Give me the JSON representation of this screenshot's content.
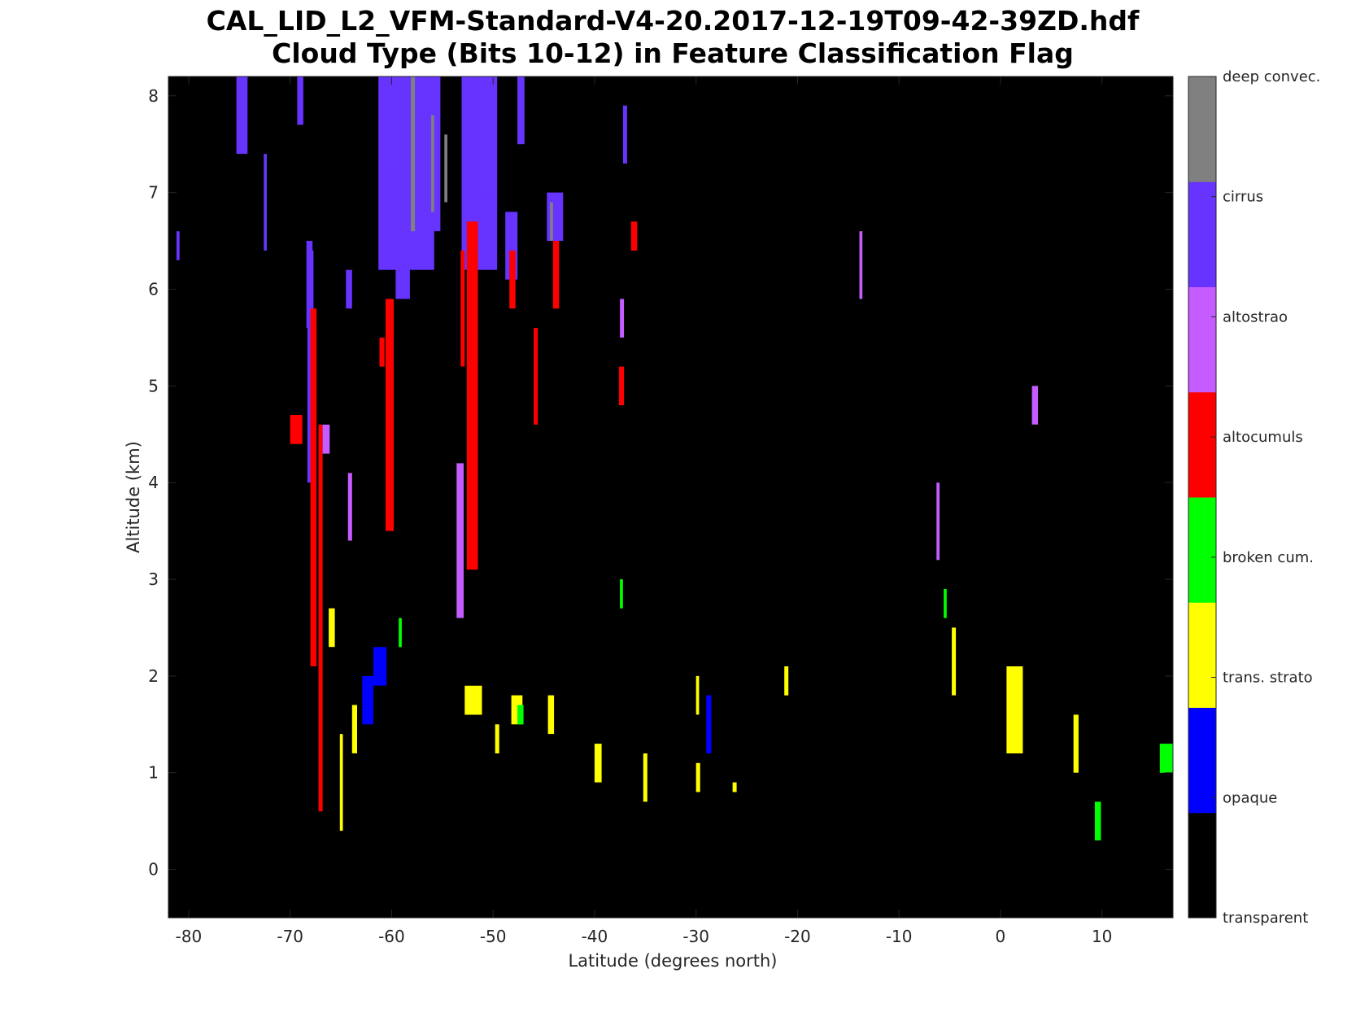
{
  "chart_data": {
    "type": "heatmap",
    "title": "CAL_LID_L2_VFM-Standard-V4-20.2017-12-19T09-42-39ZD.hdf",
    "subtitle": "Cloud Type  (Bits 10-12) in Feature Classification Flag",
    "xlabel": "Latitude (degrees north)",
    "ylabel": "Altitude (km)",
    "xlim": [
      -82,
      17
    ],
    "ylim": [
      -0.5,
      8.2
    ],
    "xticks": [
      -80,
      -70,
      -60,
      -50,
      -40,
      -30,
      -20,
      -10,
      0,
      10
    ],
    "yticks": [
      0,
      1,
      2,
      3,
      4,
      5,
      6,
      7,
      8
    ],
    "background_class": "transparent",
    "colorbar": {
      "position": "right",
      "classes": [
        {
          "label": "transparent",
          "color": "#000000"
        },
        {
          "label": "opaque",
          "color": "#0000ff"
        },
        {
          "label": "trans. strato",
          "color": "#ffff00"
        },
        {
          "label": "broken cum.",
          "color": "#00ff00"
        },
        {
          "label": "altocumuls",
          "color": "#ff0000"
        },
        {
          "label": "altostrao",
          "color": "#c45cff"
        },
        {
          "label": "cirrus",
          "color": "#6633ff"
        },
        {
          "label": "deep convec.",
          "color": "#808080"
        }
      ]
    },
    "features": [
      {
        "class": "cirrus",
        "x": [
          -75.3,
          -74.2
        ],
        "y": [
          7.4,
          8.2
        ]
      },
      {
        "class": "cirrus",
        "x": [
          -72.6,
          -72.3
        ],
        "y": [
          6.4,
          7.4
        ]
      },
      {
        "class": "cirrus",
        "x": [
          -69.3,
          -68.7
        ],
        "y": [
          7.7,
          8.2
        ]
      },
      {
        "class": "cirrus",
        "x": [
          -68.4,
          -67.8
        ],
        "y": [
          5.6,
          6.5
        ]
      },
      {
        "class": "cirrus",
        "x": [
          -68.3,
          -67.7
        ],
        "y": [
          4.0,
          6.4
        ]
      },
      {
        "class": "cirrus",
        "x": [
          -64.5,
          -63.9
        ],
        "y": [
          5.8,
          6.2
        ]
      },
      {
        "class": "cirrus",
        "x": [
          -81.2,
          -80.9
        ],
        "y": [
          6.3,
          6.6
        ]
      },
      {
        "class": "cirrus",
        "x": [
          -61.3,
          -55.8
        ],
        "y": [
          6.2,
          8.2
        ]
      },
      {
        "class": "cirrus",
        "x": [
          -59.6,
          -58.2
        ],
        "y": [
          5.9,
          7.2
        ]
      },
      {
        "class": "cirrus",
        "x": [
          -56.4,
          -55.2
        ],
        "y": [
          6.6,
          8.2
        ]
      },
      {
        "class": "cirrus",
        "x": [
          -53.1,
          -49.6
        ],
        "y": [
          6.2,
          8.2
        ]
      },
      {
        "class": "cirrus",
        "x": [
          -51.8,
          -50.3
        ],
        "y": [
          7.0,
          8.2
        ]
      },
      {
        "class": "cirrus",
        "x": [
          -48.8,
          -47.6
        ],
        "y": [
          6.1,
          6.8
        ]
      },
      {
        "class": "cirrus",
        "x": [
          -47.6,
          -46.9
        ],
        "y": [
          7.5,
          8.2
        ]
      },
      {
        "class": "cirrus",
        "x": [
          -44.7,
          -43.1
        ],
        "y": [
          6.5,
          7.0
        ]
      },
      {
        "class": "cirrus",
        "x": [
          -37.2,
          -36.8
        ],
        "y": [
          7.3,
          7.9
        ]
      },
      {
        "class": "deep convec.",
        "x": [
          -58.1,
          -57.7
        ],
        "y": [
          6.6,
          8.2
        ]
      },
      {
        "class": "deep convec.",
        "x": [
          -56.1,
          -55.8
        ],
        "y": [
          6.8,
          7.8
        ]
      },
      {
        "class": "deep convec.",
        "x": [
          -54.8,
          -54.5
        ],
        "y": [
          6.9,
          7.6
        ]
      },
      {
        "class": "deep convec.",
        "x": [
          -44.4,
          -44.1
        ],
        "y": [
          6.5,
          6.9
        ]
      },
      {
        "class": "altocumuls",
        "x": [
          -68.0,
          -67.4
        ],
        "y": [
          2.1,
          5.8
        ]
      },
      {
        "class": "altocumuls",
        "x": [
          -70.0,
          -68.8
        ],
        "y": [
          4.4,
          4.7
        ]
      },
      {
        "class": "altocumuls",
        "x": [
          -67.2,
          -66.8
        ],
        "y": [
          0.6,
          4.6
        ]
      },
      {
        "class": "altocumuls",
        "x": [
          -61.2,
          -60.7
        ],
        "y": [
          5.2,
          5.5
        ]
      },
      {
        "class": "altocumuls",
        "x": [
          -60.6,
          -59.8
        ],
        "y": [
          3.5,
          5.9
        ]
      },
      {
        "class": "altocumuls",
        "x": [
          -52.6,
          -51.5
        ],
        "y": [
          3.1,
          6.7
        ]
      },
      {
        "class": "altocumuls",
        "x": [
          -53.2,
          -52.8
        ],
        "y": [
          5.2,
          6.4
        ]
      },
      {
        "class": "altocumuls",
        "x": [
          -48.4,
          -47.8
        ],
        "y": [
          5.8,
          6.4
        ]
      },
      {
        "class": "altocumuls",
        "x": [
          -46.0,
          -45.6
        ],
        "y": [
          4.6,
          5.6
        ]
      },
      {
        "class": "altocumuls",
        "x": [
          -44.1,
          -43.5
        ],
        "y": [
          5.8,
          6.5
        ]
      },
      {
        "class": "altocumuls",
        "x": [
          -37.6,
          -37.1
        ],
        "y": [
          4.8,
          5.2
        ]
      },
      {
        "class": "altocumuls",
        "x": [
          -36.4,
          -35.8
        ],
        "y": [
          6.4,
          6.7
        ]
      },
      {
        "class": "altostrao",
        "x": [
          -66.8,
          -66.1
        ],
        "y": [
          4.3,
          4.6
        ]
      },
      {
        "class": "altostrao",
        "x": [
          -64.3,
          -63.9
        ],
        "y": [
          3.4,
          4.1
        ]
      },
      {
        "class": "altostrao",
        "x": [
          -53.6,
          -52.9
        ],
        "y": [
          2.6,
          4.2
        ]
      },
      {
        "class": "altostrao",
        "x": [
          -37.5,
          -37.1
        ],
        "y": [
          5.5,
          5.9
        ]
      },
      {
        "class": "altostrao",
        "x": [
          -13.9,
          -13.6
        ],
        "y": [
          5.9,
          6.6
        ]
      },
      {
        "class": "altostrao",
        "x": [
          3.1,
          3.7
        ],
        "y": [
          4.6,
          5.0
        ]
      },
      {
        "class": "altostrao",
        "x": [
          -6.3,
          -6.0
        ],
        "y": [
          3.2,
          4.0
        ]
      },
      {
        "class": "opaque",
        "x": [
          -62.9,
          -61.8
        ],
        "y": [
          1.5,
          2.0
        ]
      },
      {
        "class": "opaque",
        "x": [
          -61.8,
          -60.5
        ],
        "y": [
          1.9,
          2.3
        ]
      },
      {
        "class": "opaque",
        "x": [
          -29.0,
          -28.5
        ],
        "y": [
          1.2,
          1.8
        ]
      },
      {
        "class": "trans. strato",
        "x": [
          -66.2,
          -65.6
        ],
        "y": [
          2.3,
          2.7
        ]
      },
      {
        "class": "trans. strato",
        "x": [
          -65.1,
          -64.8
        ],
        "y": [
          0.4,
          1.4
        ]
      },
      {
        "class": "trans. strato",
        "x": [
          -63.9,
          -63.4
        ],
        "y": [
          1.2,
          1.7
        ]
      },
      {
        "class": "trans. strato",
        "x": [
          -52.8,
          -51.1
        ],
        "y": [
          1.6,
          1.9
        ]
      },
      {
        "class": "trans. strato",
        "x": [
          -49.8,
          -49.4
        ],
        "y": [
          1.2,
          1.5
        ]
      },
      {
        "class": "trans. strato",
        "x": [
          -48.2,
          -47.1
        ],
        "y": [
          1.5,
          1.8
        ]
      },
      {
        "class": "trans. strato",
        "x": [
          -44.6,
          -44.0
        ],
        "y": [
          1.4,
          1.8
        ]
      },
      {
        "class": "trans. strato",
        "x": [
          -40.0,
          -39.3
        ],
        "y": [
          0.9,
          1.3
        ]
      },
      {
        "class": "trans. strato",
        "x": [
          -35.2,
          -34.8
        ],
        "y": [
          0.7,
          1.2
        ]
      },
      {
        "class": "trans. strato",
        "x": [
          -30.0,
          -29.6
        ],
        "y": [
          0.8,
          1.1
        ]
      },
      {
        "class": "trans. strato",
        "x": [
          -30.0,
          -29.7
        ],
        "y": [
          1.6,
          2.0
        ]
      },
      {
        "class": "trans. strato",
        "x": [
          -26.4,
          -26.0
        ],
        "y": [
          0.8,
          0.9
        ]
      },
      {
        "class": "trans. strato",
        "x": [
          -21.3,
          -20.9
        ],
        "y": [
          1.8,
          2.1
        ]
      },
      {
        "class": "trans. strato",
        "x": [
          0.6,
          2.2
        ],
        "y": [
          1.2,
          2.1
        ]
      },
      {
        "class": "trans. strato",
        "x": [
          7.2,
          7.7
        ],
        "y": [
          1.0,
          1.6
        ]
      },
      {
        "class": "trans. strato",
        "x": [
          -4.8,
          -4.4
        ],
        "y": [
          1.8,
          2.5
        ]
      },
      {
        "class": "broken cum.",
        "x": [
          -47.6,
          -47.0
        ],
        "y": [
          1.5,
          1.7
        ]
      },
      {
        "class": "broken cum.",
        "x": [
          -59.3,
          -59.0
        ],
        "y": [
          2.3,
          2.6
        ]
      },
      {
        "class": "broken cum.",
        "x": [
          -37.5,
          -37.2
        ],
        "y": [
          2.7,
          3.0
        ]
      },
      {
        "class": "broken cum.",
        "x": [
          9.3,
          9.9
        ],
        "y": [
          0.3,
          0.7
        ]
      },
      {
        "class": "broken cum.",
        "x": [
          15.7,
          17.0
        ],
        "y": [
          1.0,
          1.3
        ]
      },
      {
        "class": "broken cum.",
        "x": [
          -5.6,
          -5.3
        ],
        "y": [
          2.6,
          2.9
        ]
      }
    ]
  }
}
